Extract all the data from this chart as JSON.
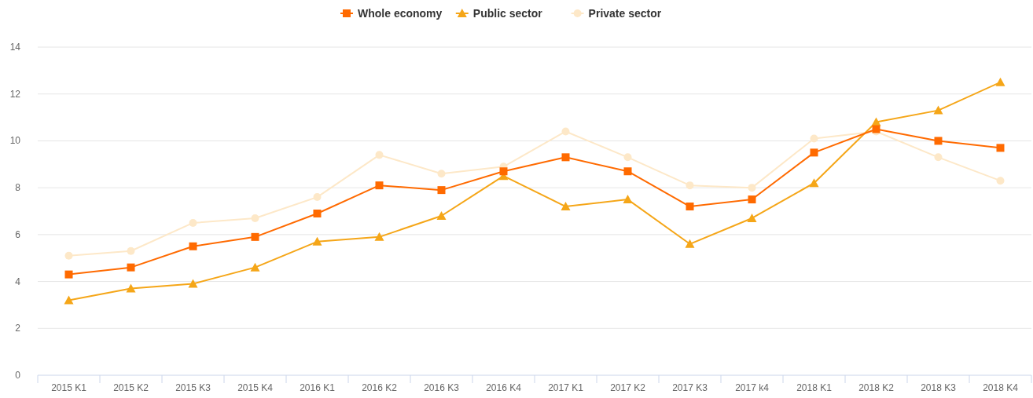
{
  "chart_data": {
    "type": "line",
    "categories": [
      "2015 K1",
      "2015 K2",
      "2015 K3",
      "2015 K4",
      "2016 K1",
      "2016 K2",
      "2016 K3",
      "2016 K4",
      "2017 K1",
      "2017 K2",
      "2017 K3",
      "2017 k4",
      "2018 K1",
      "2018 K2",
      "2018 K3",
      "2018 K4"
    ],
    "series": [
      {
        "name": "Whole economy",
        "color": "#ff6a00",
        "marker": "square",
        "values": [
          4.3,
          4.6,
          5.5,
          5.9,
          6.9,
          8.1,
          7.9,
          8.7,
          9.3,
          8.7,
          7.2,
          7.5,
          9.5,
          10.5,
          10.0,
          9.7
        ]
      },
      {
        "name": "Public sector",
        "color": "#f5a618",
        "marker": "triangle",
        "values": [
          3.2,
          3.7,
          3.9,
          4.6,
          5.7,
          5.9,
          6.8,
          8.5,
          7.2,
          7.5,
          5.6,
          6.7,
          8.2,
          10.8,
          11.3,
          12.5
        ]
      },
      {
        "name": "Private sector",
        "color": "#fde8c8",
        "marker": "circle",
        "values": [
          5.1,
          5.3,
          6.5,
          6.7,
          7.6,
          9.4,
          8.6,
          8.9,
          10.4,
          9.3,
          8.1,
          8.0,
          10.1,
          10.4,
          9.3,
          8.3
        ]
      }
    ],
    "ylim": [
      0,
      14
    ],
    "yticks": [
      0,
      2,
      4,
      6,
      8,
      10,
      12,
      14
    ],
    "grid": "y",
    "legend": "top"
  }
}
